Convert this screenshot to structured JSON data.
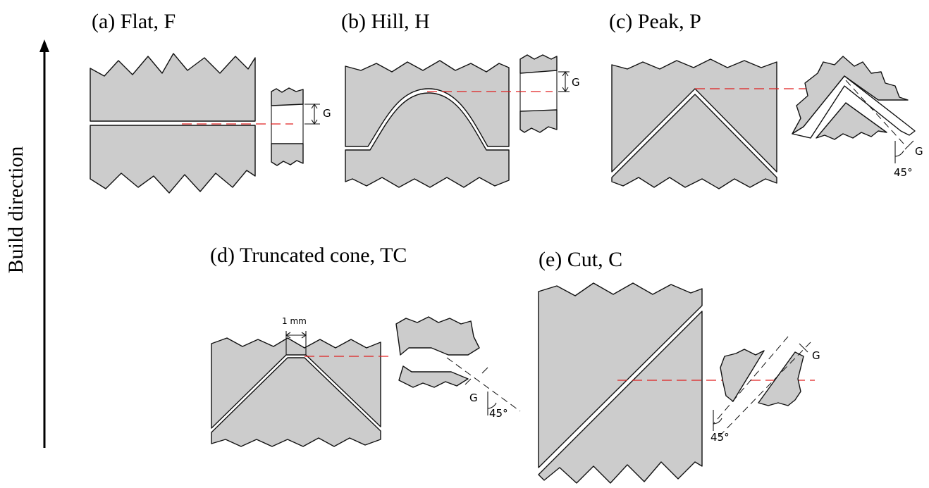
{
  "axis": {
    "label": "Build direction"
  },
  "panels": [
    {
      "id": "a",
      "title": "(a) Flat, F",
      "gap_label": "G"
    },
    {
      "id": "b",
      "title": "(b) Hill, H",
      "gap_label": "G"
    },
    {
      "id": "c",
      "title": "(c) Peak, P",
      "gap_label": "G",
      "angle_label": "45°"
    },
    {
      "id": "d",
      "title": "(d) Truncated cone, TC",
      "gap_label": "G",
      "angle_label": "45°",
      "width_label": "1 mm"
    },
    {
      "id": "e",
      "title": "(e) Cut, C",
      "gap_label": "G",
      "angle_label": "45°"
    }
  ],
  "colors": {
    "part_fill": "#cccccc",
    "outline": "#111111",
    "reference_line": "#e02020"
  }
}
